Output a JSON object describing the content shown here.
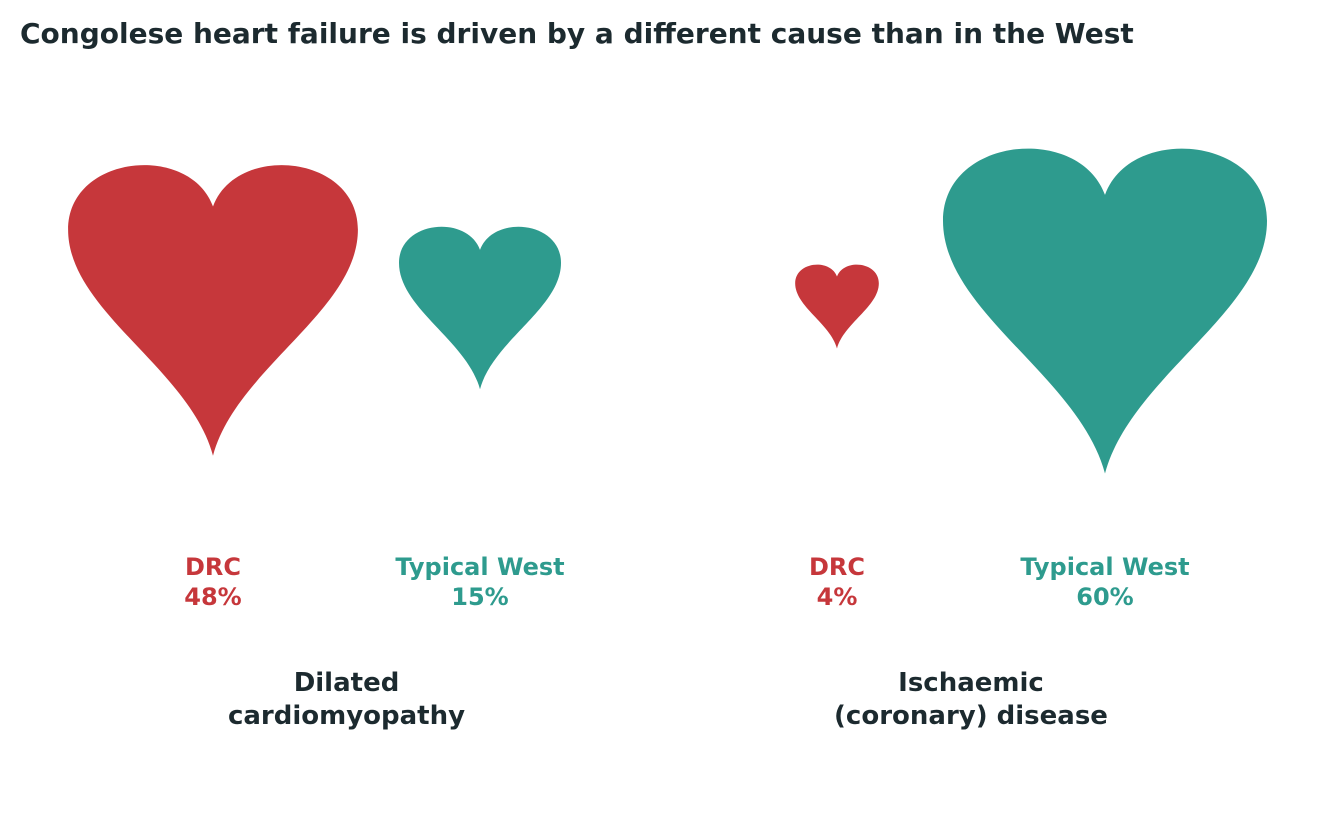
{
  "chart_data": {
    "type": "bar",
    "title": "Congolese heart failure is driven by a different cause than in the West",
    "categories": [
      "Dilated\ncardiomyopathy",
      "Ischaemic\n(coronary) disease"
    ],
    "series": [
      {
        "name": "DRC",
        "values": [
          48,
          4
        ],
        "value_labels": [
          "48%",
          "4%"
        ],
        "color": "#c6373b"
      },
      {
        "name": "Typical West",
        "values": [
          15,
          60
        ],
        "value_labels": [
          "15%",
          "60%"
        ],
        "color": "#2e9b8e"
      }
    ],
    "unit": "%",
    "mark": "heart-icon",
    "encoding": "heart area proportional to value"
  }
}
